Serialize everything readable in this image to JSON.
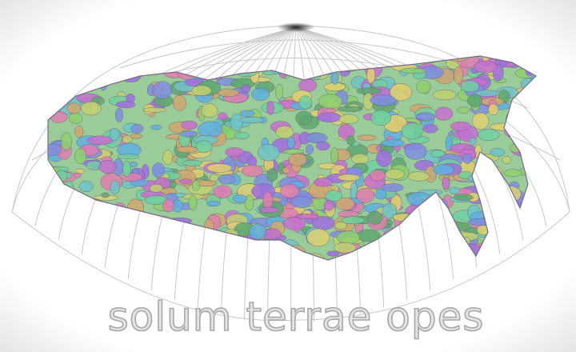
{
  "caption": "solum terrae opes"
}
